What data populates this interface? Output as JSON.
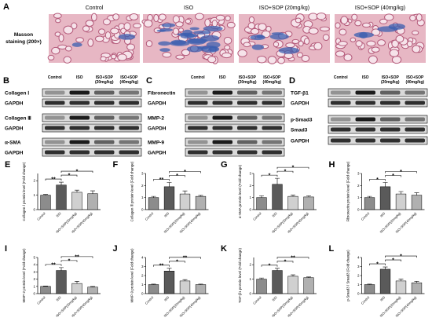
{
  "figure": {
    "panel_a": {
      "label": "A",
      "columns": [
        "Control",
        "ISO",
        "ISO+SOP (20mg/kg)",
        "ISO+SOP (40mg/kg)"
      ],
      "row_label": [
        "Masson",
        "staining (200×)"
      ]
    },
    "blots": [
      {
        "label": "B",
        "columns": [
          [
            "Control"
          ],
          [
            "ISO"
          ],
          [
            "ISO+SOP",
            "(20mg/kg)"
          ],
          [
            "ISO+SOP",
            "(40mg/kg)"
          ]
        ],
        "rows": [
          "Collagen Ⅰ",
          "GAPDH",
          "Collagen Ⅲ",
          "GAPDH",
          "α-SMA",
          "GAPDH"
        ]
      },
      {
        "label": "C",
        "columns": [
          [
            "Control"
          ],
          [
            "ISO"
          ],
          [
            "ISO+SOP",
            "(20mg/kg)"
          ],
          [
            "ISO+SOP",
            "(40mg/kg)"
          ]
        ],
        "rows": [
          "Fibronectin",
          "GAPDH",
          "MMP-2",
          "GAPDH",
          "MMP-9",
          "GAPDH"
        ]
      },
      {
        "label": "D",
        "columns": [
          [
            "Control"
          ],
          [
            "ISO"
          ],
          [
            "ISO+SOP",
            "(20mg/kg)"
          ],
          [
            "ISO+SOP",
            "(40mg/kg)"
          ]
        ],
        "rows": [
          "TGF-β1",
          "GAPDH",
          "p-Smad3",
          "Smad3",
          "GAPDH"
        ]
      }
    ]
  },
  "chart_data": [
    {
      "type": "bar",
      "label": "E",
      "ylabel": "Collagen Ⅰ protein level (Fold change)",
      "categories": [
        "Control",
        "ISO",
        "ISO+SOP(20mg/kg)",
        "ISO+SOP(40mg/kg)"
      ],
      "values": [
        1.0,
        1.7,
        1.2,
        1.1
      ],
      "errors": [
        0.05,
        0.2,
        0.15,
        0.2
      ],
      "colors": [
        "#8c8c8c",
        "#5a5a5a",
        "#d0d0d0",
        "#b0b0b0"
      ],
      "ylim": [
        0,
        2.5
      ],
      "yticks": [
        0,
        1,
        2
      ],
      "brackets": [
        {
          "label": "**",
          "between": [
            "Control",
            "ISO"
          ]
        },
        {
          "label": "*",
          "between": [
            "ISO",
            "ISO+SOP(20mg/kg)"
          ]
        },
        {
          "label": "*",
          "between": [
            "ISO",
            "ISO+SOP(40mg/kg)"
          ]
        }
      ]
    },
    {
      "type": "bar",
      "label": "F",
      "ylabel": "Collagen Ⅲ protein level (Fold change)",
      "categories": [
        "Control",
        "ISO",
        "ISO+SOP(20mg/kg)",
        "ISO+SOP(40mg/kg)"
      ],
      "values": [
        1.0,
        1.9,
        1.3,
        1.1
      ],
      "errors": [
        0.1,
        0.35,
        0.25,
        0.08
      ],
      "colors": [
        "#8c8c8c",
        "#5a5a5a",
        "#d0d0d0",
        "#b0b0b0"
      ],
      "ylim": [
        0,
        3
      ],
      "yticks": [
        0,
        1,
        2,
        3
      ],
      "brackets": [
        {
          "label": "**",
          "between": [
            "Control",
            "ISO"
          ]
        },
        {
          "label": "*",
          "between": [
            "ISO",
            "ISO+SOP(20mg/kg)"
          ]
        },
        {
          "label": "*",
          "between": [
            "ISO",
            "ISO+SOP(40mg/kg)"
          ]
        }
      ]
    },
    {
      "type": "bar",
      "label": "G",
      "ylabel": "α-SMA protein level (Fold change)",
      "categories": [
        "Control",
        "ISO",
        "ISO+SOP(20mg/kg)",
        "ISO+SOP(40mg/kg)"
      ],
      "values": [
        1.0,
        2.1,
        1.1,
        1.05
      ],
      "errors": [
        0.15,
        0.5,
        0.1,
        0.1
      ],
      "colors": [
        "#8c8c8c",
        "#5a5a5a",
        "#d0d0d0",
        "#b0b0b0"
      ],
      "ylim": [
        0,
        3
      ],
      "yticks": [
        0,
        1,
        2,
        3
      ],
      "brackets": [
        {
          "label": "*",
          "between": [
            "Control",
            "ISO"
          ]
        },
        {
          "label": "*",
          "between": [
            "ISO",
            "ISO+SOP(20mg/kg)"
          ]
        },
        {
          "label": "*",
          "between": [
            "ISO",
            "ISO+SOP(40mg/kg)"
          ]
        }
      ]
    },
    {
      "type": "bar",
      "label": "H",
      "ylabel": "Fibronectin protein level (Fold change)",
      "categories": [
        "Control",
        "ISO",
        "ISO+SOP(20mg/kg)",
        "ISO+SOP(40mg/kg)"
      ],
      "values": [
        1.0,
        1.9,
        1.3,
        1.2
      ],
      "errors": [
        0.1,
        0.35,
        0.2,
        0.2
      ],
      "colors": [
        "#8c8c8c",
        "#5a5a5a",
        "#d0d0d0",
        "#b0b0b0"
      ],
      "ylim": [
        0,
        3
      ],
      "yticks": [
        0,
        1,
        2,
        3
      ],
      "brackets": [
        {
          "label": "*",
          "between": [
            "Control",
            "ISO"
          ]
        },
        {
          "label": "*",
          "between": [
            "ISO",
            "ISO+SOP(20mg/kg)"
          ]
        },
        {
          "label": "*",
          "between": [
            "ISO",
            "ISO+SOP(40mg/kg)"
          ]
        }
      ]
    },
    {
      "type": "bar",
      "label": "I",
      "ylabel": "MMP-2 protein level (Fold change)",
      "categories": [
        "Control",
        "ISO",
        "ISO+SOP(20mg/kg)",
        "ISO+SOP(40mg/kg)"
      ],
      "values": [
        1.0,
        3.2,
        1.4,
        0.9
      ],
      "errors": [
        0.05,
        0.4,
        0.3,
        0.08
      ],
      "colors": [
        "#8c8c8c",
        "#5a5a5a",
        "#d0d0d0",
        "#b0b0b0"
      ],
      "ylim": [
        0,
        5
      ],
      "yticks": [
        0,
        1,
        2,
        3,
        4,
        5
      ],
      "brackets": [
        {
          "label": "**",
          "between": [
            "Control",
            "ISO"
          ]
        },
        {
          "label": "*",
          "between": [
            "ISO",
            "ISO+SOP(20mg/kg)"
          ]
        },
        {
          "label": "**",
          "between": [
            "ISO",
            "ISO+SOP(40mg/kg)"
          ]
        }
      ]
    },
    {
      "type": "bar",
      "label": "J",
      "ylabel": "MMP-9 protein level (Fold change)",
      "categories": [
        "Control",
        "ISO",
        "ISO+SOP(20mg/kg)",
        "ISO+SOP(40mg/kg)"
      ],
      "values": [
        1.0,
        2.5,
        1.4,
        1.0
      ],
      "errors": [
        0.05,
        0.3,
        0.15,
        0.05
      ],
      "colors": [
        "#8c8c8c",
        "#5a5a5a",
        "#d0d0d0",
        "#b0b0b0"
      ],
      "ylim": [
        0,
        4
      ],
      "yticks": [
        0,
        1,
        2,
        3,
        4
      ],
      "brackets": [
        {
          "label": "**",
          "between": [
            "Control",
            "ISO"
          ]
        },
        {
          "label": "*",
          "between": [
            "ISO",
            "ISO+SOP(20mg/kg)"
          ]
        },
        {
          "label": "**",
          "between": [
            "ISO",
            "ISO+SOP(40mg/kg)"
          ]
        }
      ]
    },
    {
      "type": "bar",
      "label": "K",
      "ylabel": "TGF-β1 protein level (Fold change)",
      "categories": [
        "Control",
        "ISO",
        "ISO+SOP(20mg/kg)",
        "ISO+SOP(40mg/kg)"
      ],
      "values": [
        1.0,
        1.6,
        1.2,
        1.1
      ],
      "errors": [
        0.08,
        0.15,
        0.1,
        0.05
      ],
      "colors": [
        "#8c8c8c",
        "#5a5a5a",
        "#d0d0d0",
        "#b0b0b0"
      ],
      "ylim": [
        0,
        2.5
      ],
      "yticks": [
        0,
        1,
        2
      ],
      "brackets": [
        {
          "label": "*",
          "between": [
            "Control",
            "ISO"
          ]
        },
        {
          "label": "*",
          "between": [
            "ISO",
            "ISO+SOP(20mg/kg)"
          ]
        },
        {
          "label": "**",
          "between": [
            "ISO",
            "ISO+SOP(40mg/kg)"
          ]
        }
      ]
    },
    {
      "type": "bar",
      "label": "L",
      "ylabel": "p-Smad3 / Smad3 (Fold change)",
      "categories": [
        "Control",
        "ISO",
        "ISO+SOP(20mg/kg)",
        "ISO+SOP(40mg/kg)"
      ],
      "values": [
        1.0,
        2.7,
        1.4,
        1.2
      ],
      "errors": [
        0.05,
        0.25,
        0.2,
        0.15
      ],
      "colors": [
        "#8c8c8c",
        "#5a5a5a",
        "#d0d0d0",
        "#b0b0b0"
      ],
      "ylim": [
        0,
        4
      ],
      "yticks": [
        0,
        1,
        2,
        3,
        4
      ],
      "brackets": [
        {
          "label": "*",
          "between": [
            "Control",
            "ISO"
          ]
        },
        {
          "label": "*",
          "between": [
            "ISO",
            "ISO+SOP(20mg/kg)"
          ]
        },
        {
          "label": "*",
          "between": [
            "ISO",
            "ISO+SOP(40mg/kg)"
          ]
        }
      ]
    }
  ]
}
